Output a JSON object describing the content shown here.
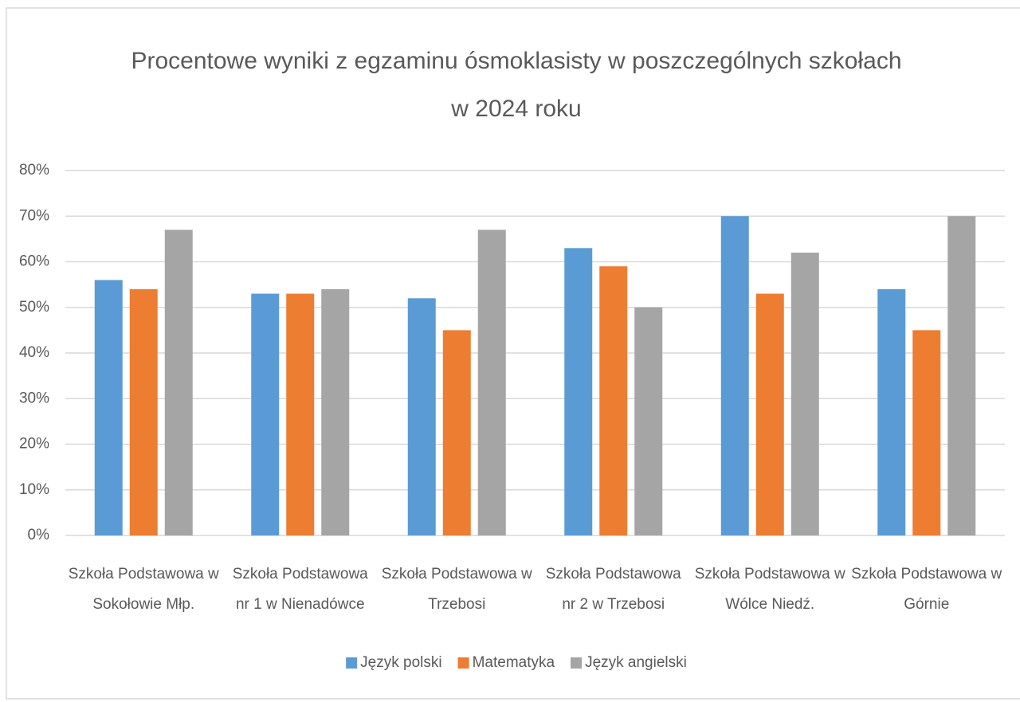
{
  "chart_data": {
    "type": "bar",
    "title": [
      "Procentowe wyniki z egzaminu ósmoklasisty w poszczególnych  szkołach",
      "w 2024 roku"
    ],
    "categories": [
      [
        "Szkoła Podstawowa w",
        "Sokołowie Młp."
      ],
      [
        "Szkoła Podstawowa",
        "nr 1 w Nienadówce"
      ],
      [
        "Szkoła Podstawowa w",
        "Trzebosi"
      ],
      [
        "Szkoła Podstawowa",
        "nr 2 w Trzebosi"
      ],
      [
        "Szkoła Podstawowa w",
        "Wólce Niedź."
      ],
      [
        "Szkoła Podstawowa w",
        "Górnie"
      ]
    ],
    "series": [
      {
        "name": "Język polski",
        "color": "#5b9bd5",
        "values": [
          56,
          53,
          52,
          63,
          70,
          54
        ]
      },
      {
        "name": "Matematyka",
        "color": "#ed7d31",
        "values": [
          54,
          53,
          45,
          59,
          53,
          45
        ]
      },
      {
        "name": "Język angielski",
        "color": "#a5a5a5",
        "values": [
          67,
          54,
          67,
          50,
          62,
          70
        ]
      }
    ],
    "ylim": [
      0,
      80
    ],
    "yticks": [
      {
        "value": 0,
        "label": "0%"
      },
      {
        "value": 10,
        "label": "10%"
      },
      {
        "value": 20,
        "label": "20%"
      },
      {
        "value": 30,
        "label": "30%"
      },
      {
        "value": 40,
        "label": "40%"
      },
      {
        "value": 50,
        "label": "50%"
      },
      {
        "value": 60,
        "label": "60%"
      },
      {
        "value": 70,
        "label": "70%"
      },
      {
        "value": 80,
        "label": "80%"
      }
    ],
    "grid": true,
    "legend": "bottom"
  }
}
